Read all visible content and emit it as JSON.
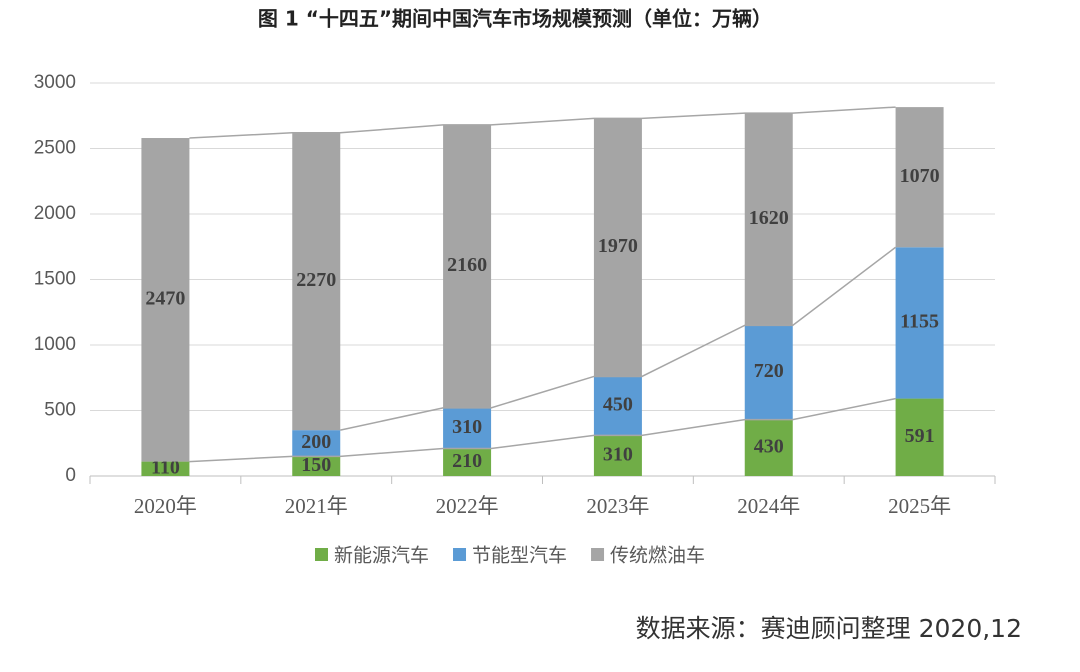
{
  "chart_data": {
    "type": "stacked_bar",
    "title": "图 1 “十四五”期间中国汽车市场规模预测（单位：万辆）",
    "categories": [
      "2020年",
      "2021年",
      "2022年",
      "2023年",
      "2024年",
      "2025年"
    ],
    "series": [
      {
        "name": "新能源汽车",
        "color": "#70ad47",
        "values": [
          110,
          150,
          210,
          310,
          430,
          591
        ]
      },
      {
        "name": "节能型汽车",
        "color": "#5b9bd5",
        "values": [
          null,
          200,
          310,
          450,
          720,
          1155
        ]
      },
      {
        "name": "传统燃油车",
        "color": "#a5a5a5",
        "values": [
          2470,
          2270,
          2160,
          1970,
          1620,
          1070
        ]
      }
    ],
    "ylim": [
      0,
      3000
    ],
    "yticks": [
      0,
      500,
      1000,
      1500,
      2000,
      2500,
      3000
    ],
    "grid": true,
    "series_lines": true,
    "legend": "bottom",
    "source": "数据来源：赛迪顾问整理 2020,12"
  }
}
